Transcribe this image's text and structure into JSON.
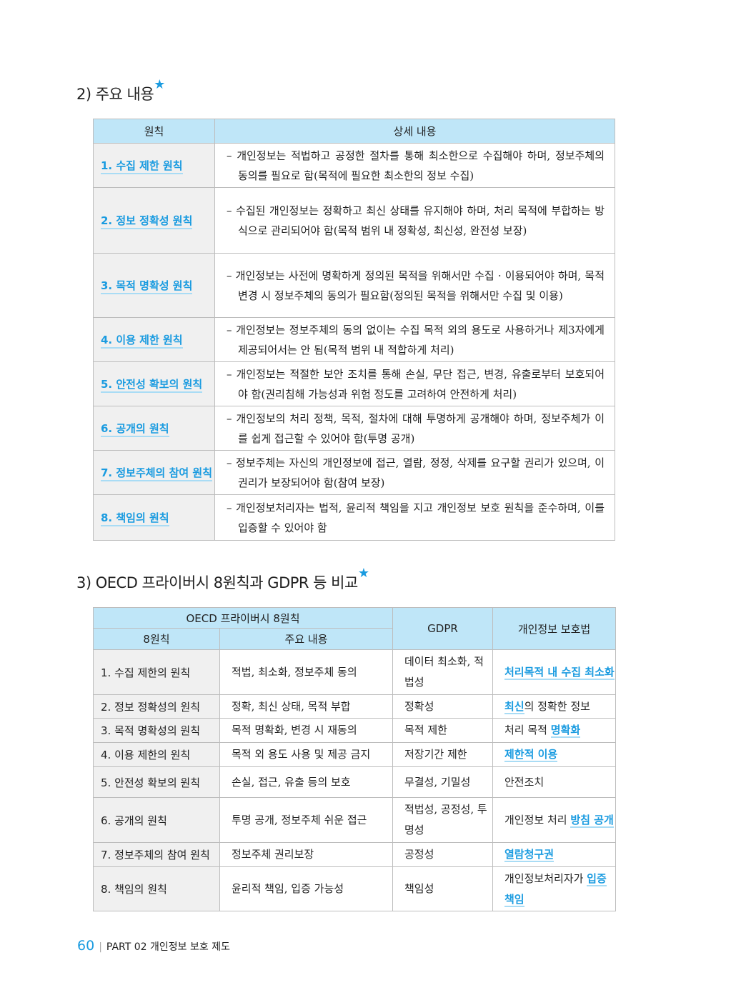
{
  "section2": {
    "title": "2) 주요 내용",
    "star": "★",
    "headers": [
      "원칙",
      "상세 내용"
    ],
    "rows": [
      {
        "principle": "1. 수집 제한 원칙",
        "detail": "– 개인정보는 적법하고 공정한 절차를 통해 최소한으로 수집해야 하며, 정보주체의 동의를 필요로 함(목적에 필요한 최소한의 정보 수집)"
      },
      {
        "principle": "2. 정보 정확성 원칙",
        "detail": "– 수집된 개인정보는 정확하고 최신 상태를 유지해야 하며, 처리 목적에 부합하는 방식으로 관리되어야 함(목적 범위 내 정확성, 최신성, 완전성 보장)"
      },
      {
        "principle": "3. 목적 명확성 원칙",
        "detail": "– 개인정보는 사전에 명확하게 정의된 목적을 위해서만 수집 · 이용되어야 하며, 목적 변경 시 정보주체의 동의가 필요함(정의된 목적을 위해서만 수집 및 이용)"
      },
      {
        "principle": "4. 이용 제한 원칙",
        "detail": "– 개인정보는 정보주체의 동의 없이는 수집 목적 외의 용도로 사용하거나 제3자에게 제공되어서는 안 됨(목적 범위 내 적합하게 처리)"
      },
      {
        "principle": "5. 안전성 확보의 원칙",
        "detail": "– 개인정보는 적절한 보안 조치를 통해 손실, 무단 접근, 변경, 유출로부터 보호되어야 함(권리침해 가능성과 위험 정도를 고려하여 안전하게 처리)"
      },
      {
        "principle": "6. 공개의 원칙",
        "detail": "– 개인정보의 처리 정책, 목적, 절차에 대해 투명하게 공개해야 하며, 정보주체가 이를 쉽게 접근할 수 있어야 함(투명 공개)"
      },
      {
        "principle": "7. 정보주체의 참여 원칙",
        "detail": "– 정보주체는 자신의 개인정보에 접근, 열람, 정정, 삭제를 요구할 권리가 있으며, 이 권리가 보장되어야 함(참여 보장)"
      },
      {
        "principle": "8. 책임의 원칙",
        "detail": "– 개인정보처리자는 법적, 윤리적 책임을 지고 개인정보 보호 원칙을 준수하며, 이를 입증할 수 있어야 함"
      }
    ]
  },
  "section3": {
    "title": "3) OECD 프라이버시 8원칙과 GDPR 등 비교",
    "star": "★",
    "headers": {
      "oecd": "OECD 프라이버시 8원칙",
      "principle": "8원칙",
      "content": "주요 내용",
      "gdpr": "GDPR",
      "law": "개인정보 보호법"
    },
    "rows": [
      {
        "principle": "1. 수집 제한의 원칙",
        "content": "적법, 최소화, 정보주체 동의",
        "gdpr": "데이터 최소화, 적법성",
        "law": [
          {
            "t": "처리목적 내 수집 최소화",
            "hl": true
          }
        ]
      },
      {
        "principle": "2. 정보 정확성의 원칙",
        "content": "정확, 최신 상태, 목적 부합",
        "gdpr": "정확성",
        "law": [
          {
            "t": "최신",
            "hl": true
          },
          {
            "t": "의 정확한 정보",
            "hl": false
          }
        ]
      },
      {
        "principle": "3. 목적 명확성의 원칙",
        "content": "목적 명확화, 변경 시 재동의",
        "gdpr": "목적 제한",
        "law": [
          {
            "t": "처리 목적 ",
            "hl": false
          },
          {
            "t": "명확화",
            "hl": true
          }
        ]
      },
      {
        "principle": "4. 이용 제한의 원칙",
        "content": "목적 외 용도 사용 및 제공 금지",
        "gdpr": "저장기간 제한",
        "law": [
          {
            "t": "제한적 이용",
            "hl": true
          }
        ]
      },
      {
        "principle": "5. 안전성 확보의 원칙",
        "content": "손실, 접근, 유출 등의 보호",
        "gdpr": "무결성, 기밀성",
        "law": [
          {
            "t": "안전조치",
            "hl": false
          }
        ]
      },
      {
        "principle": "6. 공개의 원칙",
        "content": "투명 공개, 정보주체 쉬운 접근",
        "gdpr": "적법성, 공정성, 투명성",
        "law": [
          {
            "t": "개인정보 처리 ",
            "hl": false
          },
          {
            "t": "방침 공개",
            "hl": true
          }
        ]
      },
      {
        "principle": "7. 정보주체의 참여 원칙",
        "content": "정보주체 권리보장",
        "gdpr": "공정성",
        "law": [
          {
            "t": "열람청구권",
            "hl": true
          }
        ]
      },
      {
        "principle": "8. 책임의 원칙",
        "content": "윤리적 책임, 입증 가능성",
        "gdpr": "책임성",
        "law": [
          {
            "t": "개인정보처리자가 ",
            "hl": false
          },
          {
            "t": "입증책임",
            "hl": true
          }
        ]
      }
    ]
  },
  "footer": {
    "page": "60",
    "part": "PART 02",
    "chapter": "개인정보 보호 제도"
  },
  "colors": {
    "accent": "#1a9be0",
    "header_bg": "#bfe6f8"
  }
}
